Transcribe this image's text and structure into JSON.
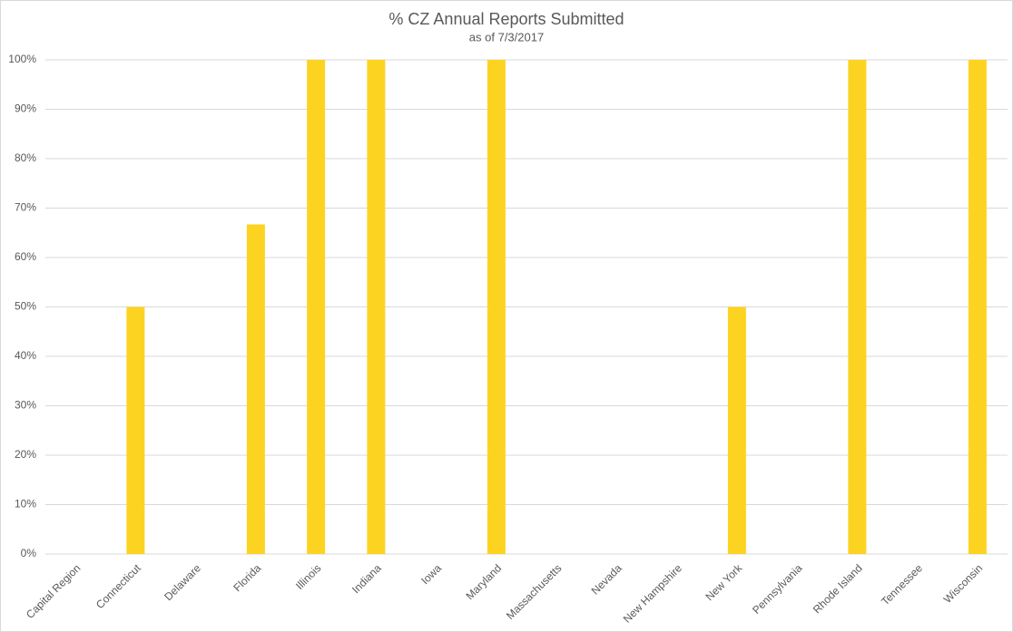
{
  "chart_data": {
    "type": "bar",
    "title": "% CZ Annual Reports Submitted",
    "subtitle": "as of 7/3/2017",
    "categories": [
      "Capital Region",
      "Connecticut",
      "Delaware",
      "Florida",
      "Illinois",
      "Indiana",
      "Iowa",
      "Maryland",
      "Massachusetts",
      "Nevada",
      "New Hampshire",
      "New York",
      "Pennsylvania",
      "Rhode Island",
      "Tennessee",
      "Wisconsin"
    ],
    "values": [
      0,
      50,
      0,
      66.7,
      100,
      100,
      0,
      100,
      0,
      0,
      0,
      50,
      0,
      100,
      0,
      100
    ],
    "color": "#fdd321",
    "ylim": [
      0,
      100
    ],
    "yticks": [
      {
        "value": 0,
        "label": "0%"
      },
      {
        "value": 10,
        "label": "10%"
      },
      {
        "value": 20,
        "label": "20%"
      },
      {
        "value": 30,
        "label": "30%"
      },
      {
        "value": 40,
        "label": "40%"
      },
      {
        "value": 50,
        "label": "50%"
      },
      {
        "value": 60,
        "label": "60%"
      },
      {
        "value": 70,
        "label": "70%"
      },
      {
        "value": 80,
        "label": "80%"
      },
      {
        "value": 90,
        "label": "90%"
      },
      {
        "value": 100,
        "label": "100%"
      }
    ],
    "grid": true
  }
}
